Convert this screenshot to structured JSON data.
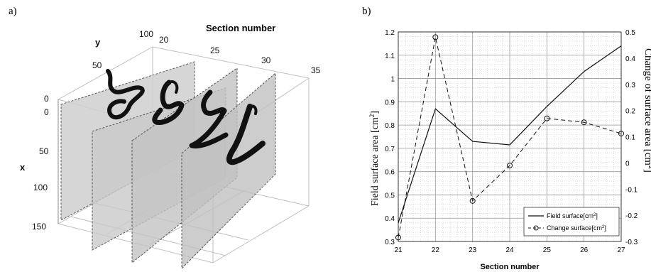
{
  "panel_a": {
    "label": "a)",
    "title": "Section number",
    "y_axis_label": "y",
    "x_axis_label": "x",
    "section_ticks": [
      "20",
      "25",
      "30",
      "35"
    ],
    "y_ticks": [
      "0",
      "50",
      "100"
    ],
    "x_ticks": [
      "0",
      "50",
      "100",
      "150"
    ],
    "slice_fill": "#c9c9c9",
    "shape_color": "#111111"
  },
  "panel_b": {
    "label": "b)",
    "xlabel": "Section number",
    "ylabel_left": "Field surface area [cm",
    "ylabel_left_sup": "2",
    "ylabel_left_end": "]",
    "ylabel_right": "Change of surface area [cm",
    "ylabel_right_sup": "2",
    "ylabel_right_end": "]",
    "legend": {
      "position": "bottom-right",
      "field_label": "Field surface[cm",
      "field_sup": "2",
      "field_end": "]",
      "change_label": "Change surface[cm",
      "change_sup": "2",
      "change_end": "]"
    }
  },
  "chart_data": {
    "type": "line",
    "x": [
      21,
      22,
      23,
      24,
      25,
      26,
      27
    ],
    "x_ticks": [
      "21",
      "22",
      "23",
      "24",
      "25",
      "26",
      "27"
    ],
    "xlim": [
      21,
      27
    ],
    "ylim_left": [
      0.3,
      1.2
    ],
    "ylim_right": [
      -0.3,
      0.5
    ],
    "y_ticks_left": [
      "0.3",
      "0.4",
      "0.5",
      "0.6",
      "0.7",
      "0.8",
      "0.9",
      "1",
      "1.1",
      "1.2"
    ],
    "y_ticks_right": [
      "-0.3",
      "-0.2",
      "-0.1",
      "0",
      "0.1",
      "0.2",
      "0.3",
      "0.4",
      "0.5"
    ],
    "grid": true,
    "series": [
      {
        "name": "Field surface[cm2]",
        "axis": "left",
        "style": "solid",
        "values": [
          0.38,
          0.87,
          0.73,
          0.715,
          0.88,
          1.03,
          1.14
        ]
      },
      {
        "name": "Change surface[cm2]",
        "axis": "right",
        "style": "dashed-circle",
        "values": [
          -0.285,
          0.48,
          -0.145,
          -0.01,
          0.17,
          0.155,
          0.112
        ]
      }
    ]
  }
}
